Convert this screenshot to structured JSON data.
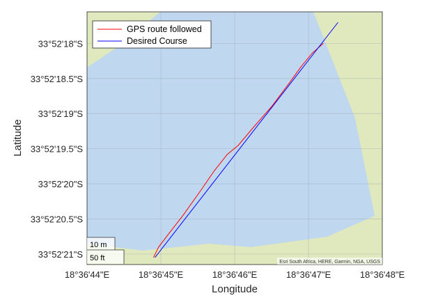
{
  "chart_data": {
    "type": "geoplot",
    "xlabel": "Longitude",
    "ylabel": "Latitude",
    "x_ticks": [
      {
        "deg": 44,
        "label": "18°36'44\"E"
      },
      {
        "deg": 45,
        "label": "18°36'45\"E"
      },
      {
        "deg": 46,
        "label": "18°36'46\"E"
      },
      {
        "deg": 47,
        "label": "18°36'47\"E"
      },
      {
        "deg": 48,
        "label": "18°36'48\"E"
      }
    ],
    "y_ticks": [
      {
        "deg": 18,
        "label": "33°52'18\"S"
      },
      {
        "deg": 18.5,
        "label": "33°52'18.5\"S"
      },
      {
        "deg": 19,
        "label": "33°52'19\"S"
      },
      {
        "deg": 19.5,
        "label": "33°52'19.5\"S"
      },
      {
        "deg": 20,
        "label": "33°52'20\"S"
      },
      {
        "deg": 20.5,
        "label": "33°52'20.5\"S"
      },
      {
        "deg": 21,
        "label": "33°52'21\"S"
      }
    ],
    "xlim_sec": [
      44.0,
      48.0
    ],
    "ylim_sec": [
      17.55,
      21.15
    ],
    "grid": true,
    "legend_position": "top-left",
    "series": [
      {
        "name": "GPS route followed",
        "color": "#ff0000",
        "points_sec": [
          [
            44.9,
            21.05
          ],
          [
            44.97,
            20.9
          ],
          [
            45.1,
            20.72
          ],
          [
            45.3,
            20.45
          ],
          [
            45.55,
            20.08
          ],
          [
            45.72,
            19.82
          ],
          [
            45.9,
            19.58
          ],
          [
            46.05,
            19.45
          ],
          [
            46.25,
            19.2
          ],
          [
            46.5,
            18.9
          ],
          [
            46.75,
            18.55
          ],
          [
            46.9,
            18.33
          ],
          [
            47.05,
            18.14
          ],
          [
            47.2,
            18.0
          ]
        ]
      },
      {
        "name": "Desired Course",
        "color": "#0000ff",
        "points_sec": [
          [
            44.92,
            21.05
          ],
          [
            47.4,
            17.7
          ]
        ]
      }
    ],
    "water_color": "#bfd7ef",
    "land_color": "#dfe9bd",
    "scale_bar": {
      "metric": "10 m",
      "imperial": "50 ft"
    },
    "attribution": "Esri South Africa, HERE, Garmin, NGA, USGS"
  }
}
